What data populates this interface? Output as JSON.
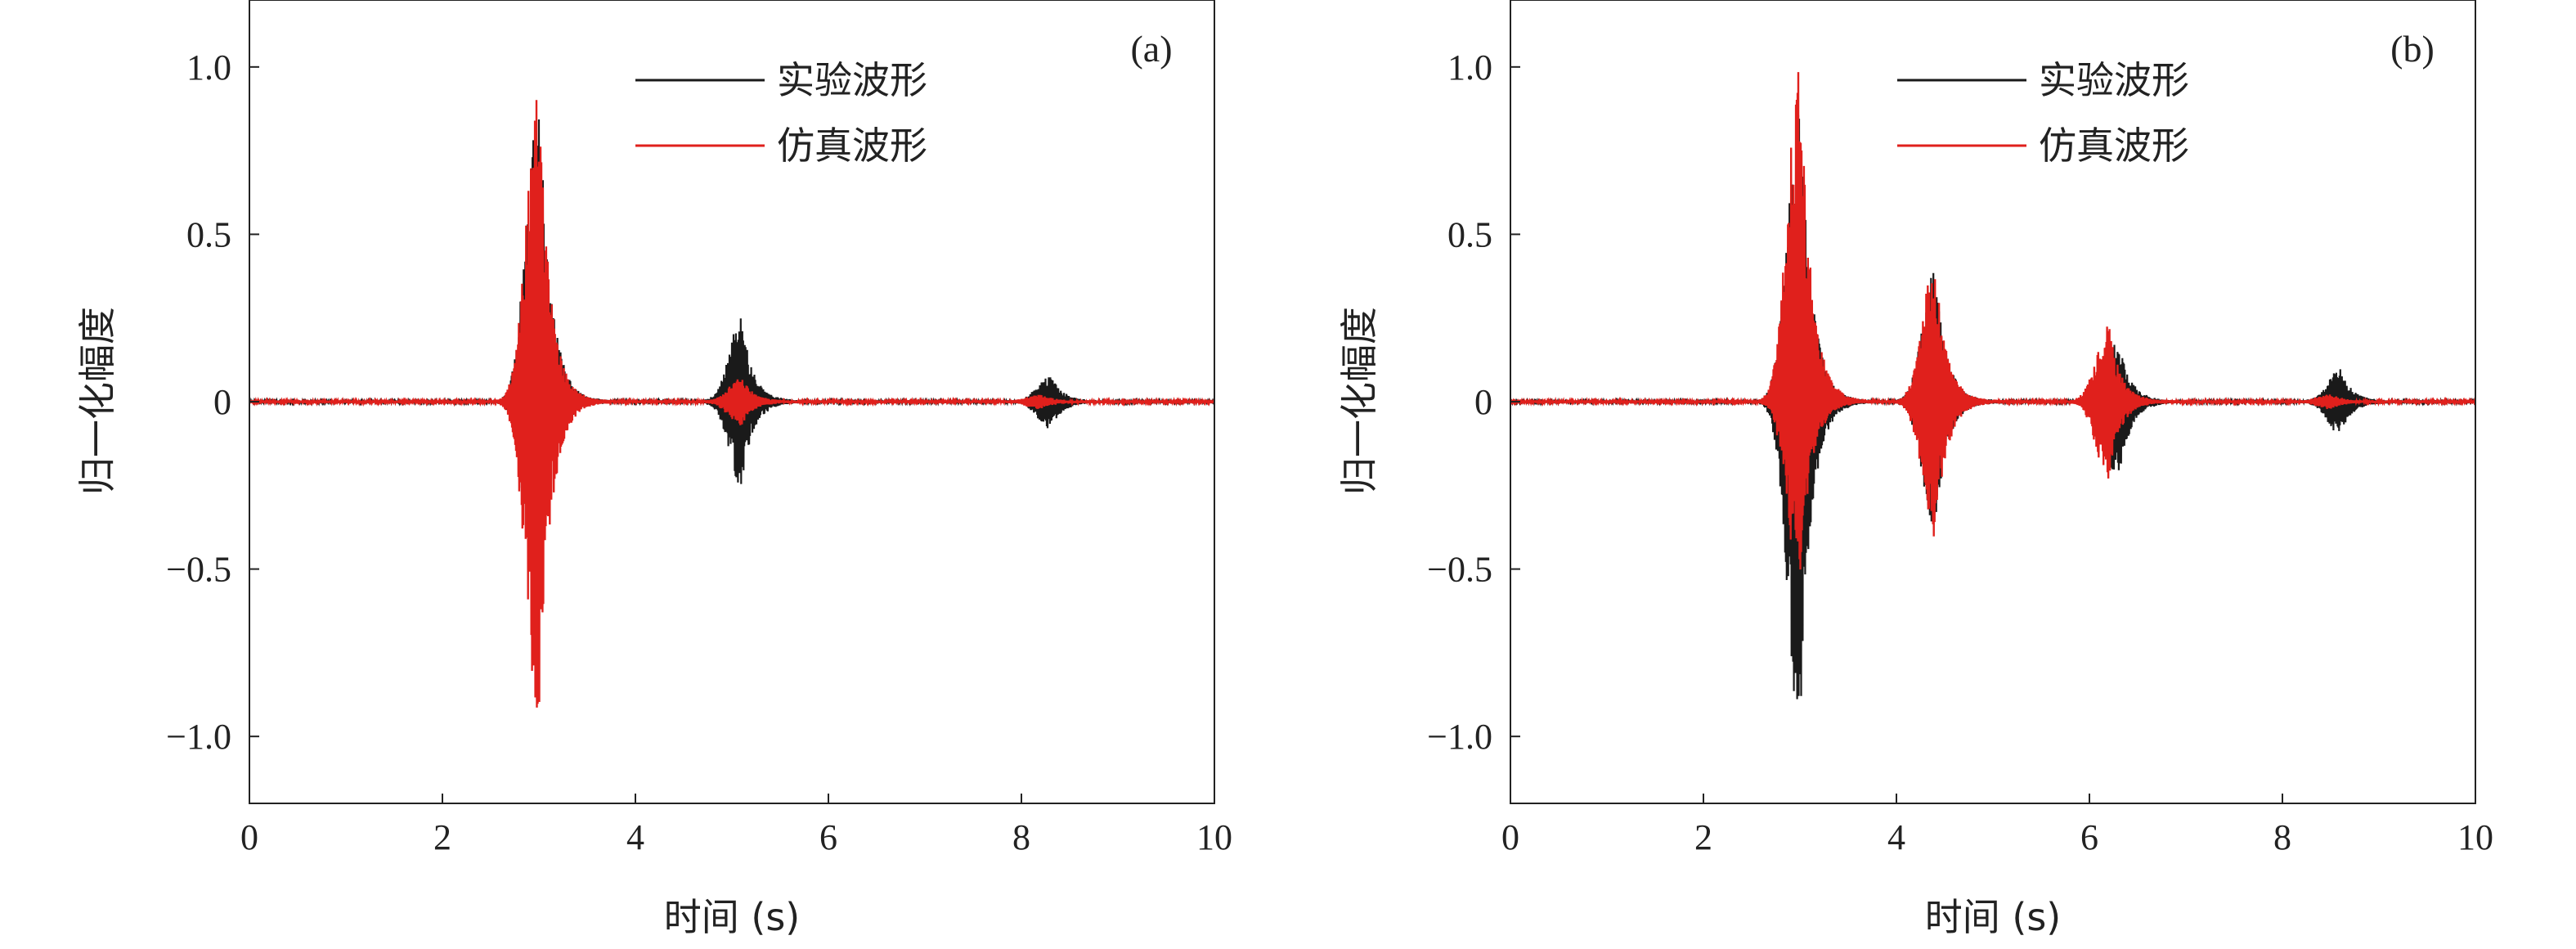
{
  "chart_data": [
    {
      "type": "line",
      "panel_label": "(a)",
      "xlabel": "时间 (s)",
      "ylabel": "归一化幅度",
      "xlim": [
        0,
        10
      ],
      "ylim": [
        -1.2,
        1.2
      ],
      "x_ticks": [
        0,
        2,
        4,
        6,
        8,
        10
      ],
      "x_tick_labels": [
        "0",
        "2",
        "4",
        "6",
        "8",
        "10"
      ],
      "y_ticks": [
        1.0,
        0.5,
        0,
        -0.5,
        -1.0
      ],
      "y_tick_labels": [
        "1.0",
        "0.5",
        "0",
        "−0.5",
        "−1.0"
      ],
      "grid": false,
      "legend_position": "top-center",
      "series": [
        {
          "name": "实验波形",
          "color": "#1a1a1a",
          "bursts": [
            {
              "t": 3.0,
              "peak_pos": 0.95,
              "peak_neg": -0.72
            },
            {
              "t": 5.1,
              "peak_pos": 0.25,
              "peak_neg": -0.25
            },
            {
              "t": 8.3,
              "peak_pos": 0.08,
              "peak_neg": -0.08
            }
          ]
        },
        {
          "name": "仿真波形",
          "color": "#e0201c",
          "bursts": [
            {
              "t": 3.0,
              "peak_pos": 0.92,
              "peak_neg": -1.0
            },
            {
              "t": 5.1,
              "peak_pos": 0.07,
              "peak_neg": -0.07
            },
            {
              "t": 8.2,
              "peak_pos": 0.02,
              "peak_neg": -0.02
            }
          ]
        }
      ]
    },
    {
      "type": "line",
      "panel_label": "(b)",
      "xlabel": "时间 (s)",
      "ylabel": "归一化幅度",
      "xlim": [
        0,
        10
      ],
      "ylim": [
        -1.2,
        1.2
      ],
      "x_ticks": [
        0,
        2,
        4,
        6,
        8,
        10
      ],
      "x_tick_labels": [
        "0",
        "2",
        "4",
        "6",
        "8",
        "10"
      ],
      "y_ticks": [
        1.0,
        0.5,
        0,
        -0.5,
        -1.0
      ],
      "y_tick_labels": [
        "1.0",
        "0.5",
        "0",
        "−0.5",
        "−1.0"
      ],
      "grid": false,
      "legend_position": "top-center",
      "series": [
        {
          "name": "实验波形",
          "color": "#1a1a1a",
          "bursts": [
            {
              "t": 3.0,
              "peak_pos": 0.92,
              "peak_neg": -1.0
            },
            {
              "t": 4.4,
              "peak_pos": 0.39,
              "peak_neg": -0.39
            },
            {
              "t": 6.3,
              "peak_pos": 0.19,
              "peak_neg": -0.24
            },
            {
              "t": 8.6,
              "peak_pos": 0.1,
              "peak_neg": -0.1
            }
          ]
        },
        {
          "name": "仿真波形",
          "color": "#e0201c",
          "bursts": [
            {
              "t": 3.0,
              "peak_pos": 1.0,
              "peak_neg": -0.55
            },
            {
              "t": 4.4,
              "peak_pos": 0.42,
              "peak_neg": -0.42
            },
            {
              "t": 6.2,
              "peak_pos": 0.23,
              "peak_neg": -0.23
            },
            {
              "t": 8.5,
              "peak_pos": 0.02,
              "peak_neg": -0.02
            }
          ]
        }
      ]
    }
  ]
}
